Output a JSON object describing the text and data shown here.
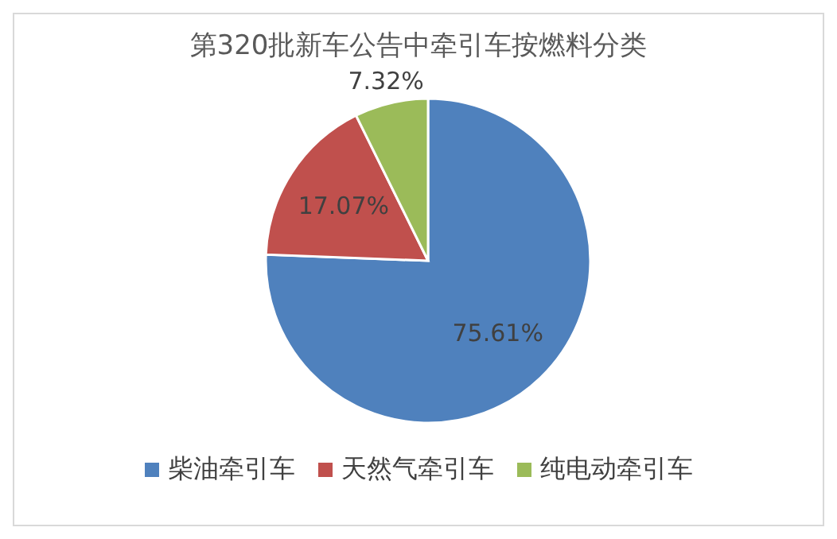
{
  "chart_data": {
    "type": "pie",
    "title": "第320批新车公告中牵引车按燃料分类",
    "categories": [
      "柴油牵引车",
      "天然气牵引车",
      "纯电动牵引车"
    ],
    "values": [
      75.61,
      17.07,
      7.32
    ],
    "colors": [
      "#4f81bd",
      "#c0504d",
      "#9bbb59"
    ],
    "value_labels": [
      "75.61%",
      "17.07%",
      "7.32%"
    ],
    "legend": "bottom"
  }
}
